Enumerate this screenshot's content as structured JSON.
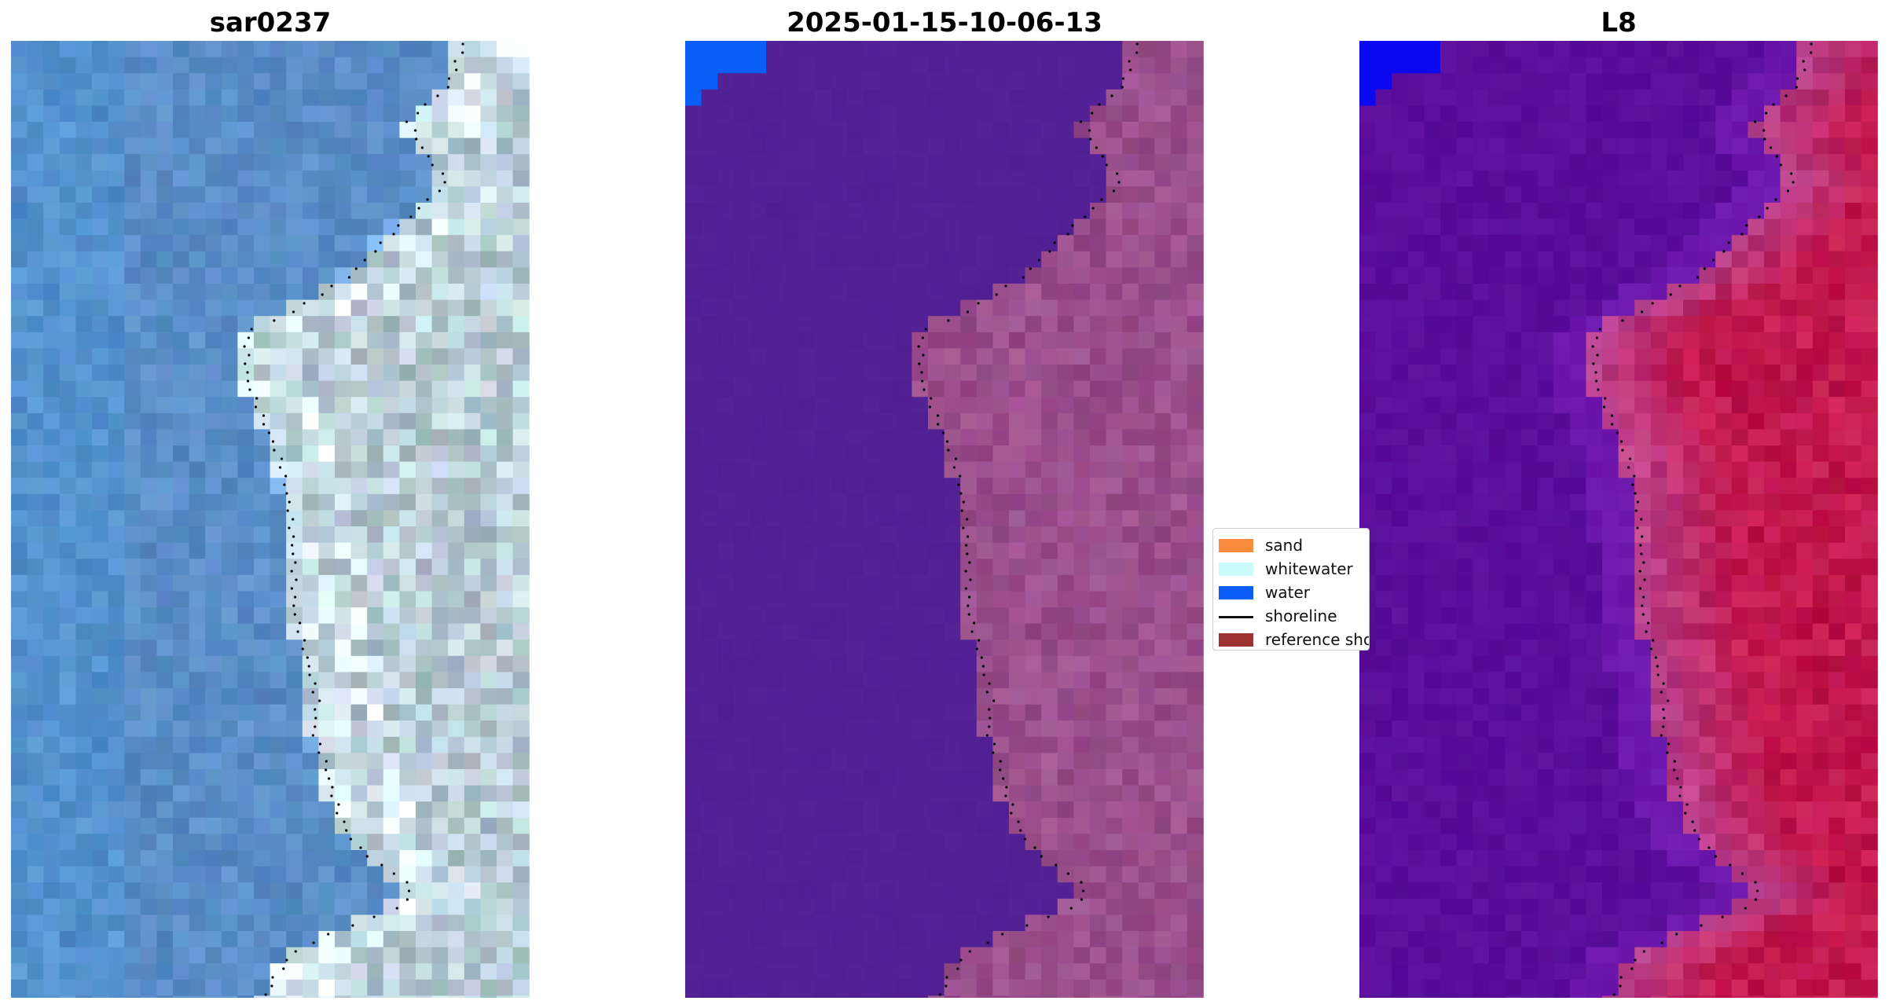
{
  "panels": [
    {
      "title": "sar0237",
      "image": "rgb-composite"
    },
    {
      "title": "2025-01-15-10-06-13",
      "image": "classified-overlay"
    },
    {
      "title": "L8",
      "image": "mndwi-index"
    }
  ],
  "legend": {
    "items": [
      {
        "label": "sand",
        "color": "#fb8b3c",
        "kind": "swatch"
      },
      {
        "label": "whitewater",
        "color": "#ccfbfb",
        "kind": "swatch"
      },
      {
        "label": "water",
        "color": "#0a5ef5",
        "kind": "swatch"
      },
      {
        "label": "shoreline",
        "color": "#111111",
        "kind": "line"
      },
      {
        "label": "reference shoreline",
        "color": "#9c3232",
        "kind": "swatch"
      }
    ]
  },
  "colors": {
    "water_class_overlay": "#0a5ef5",
    "classified_sea": "#522194",
    "classified_land": "#9a4f8c",
    "index_sea": "#5a0e9a",
    "index_land": "#c2184e",
    "rgb_sea": "#5a8ec8",
    "rgb_land": "#b9cdd6",
    "shoreline_points": "#000000"
  }
}
